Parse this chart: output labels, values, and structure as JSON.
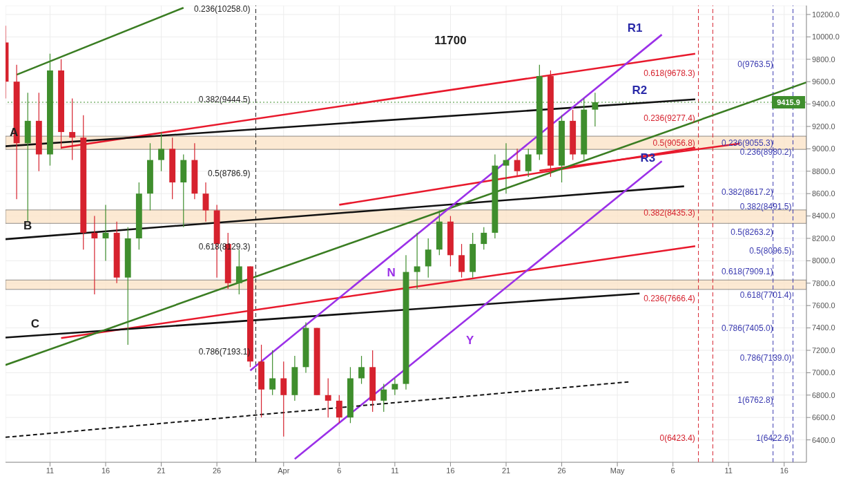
{
  "chart_data": {
    "type": "candlestick",
    "x": [
      "--03-07",
      "--03-08",
      "--03-09",
      "--03-10",
      "--03-11",
      "--03-12",
      "--03-13",
      "--03-14",
      "--03-15",
      "--03-16",
      "--03-17",
      "--03-18",
      "--03-19",
      "--03-20",
      "--03-21",
      "--03-22",
      "--03-23",
      "--03-24",
      "--03-25",
      "--03-26",
      "--03-27",
      "--03-28",
      "--03-29",
      "--03-30",
      "--03-31",
      "--04-01",
      "--04-02",
      "--04-03",
      "--04-04",
      "--04-05",
      "--04-06",
      "--04-07",
      "--04-08",
      "--04-09",
      "--04-10",
      "--04-11",
      "--04-12",
      "--04-13",
      "--04-14",
      "--04-15",
      "--04-16",
      "--04-17",
      "--04-18",
      "--04-19",
      "--04-20",
      "--04-21",
      "--04-22",
      "--04-23",
      "--04-24",
      "--04-25",
      "--04-26",
      "--04-27",
      "--04-28",
      "--04-29"
    ],
    "ohlc": [
      [
        9950,
        10100,
        9450,
        9600
      ],
      [
        9600,
        9750,
        8550,
        9050
      ],
      [
        9050,
        9500,
        8350,
        9250
      ],
      [
        9250,
        9500,
        8800,
        8950
      ],
      [
        8950,
        9850,
        8850,
        9700
      ],
      [
        9700,
        9800,
        9000,
        9150
      ],
      [
        9150,
        9450,
        8900,
        9100
      ],
      [
        9100,
        9300,
        8100,
        8250
      ],
      [
        8250,
        8400,
        7700,
        8200
      ],
      [
        8200,
        8500,
        8000,
        8250
      ],
      [
        8250,
        8350,
        7800,
        7850
      ],
      [
        7850,
        8300,
        7250,
        8200
      ],
      [
        8200,
        8700,
        8100,
        8600
      ],
      [
        8600,
        9050,
        8450,
        8900
      ],
      [
        8900,
        9150,
        8800,
        9000
      ],
      [
        9000,
        9100,
        8550,
        8700
      ],
      [
        8700,
        8950,
        8300,
        8900
      ],
      [
        8900,
        9050,
        8550,
        8600
      ],
      [
        8600,
        8700,
        8350,
        8450
      ],
      [
        8450,
        8500,
        7850,
        8150
      ],
      [
        8150,
        8250,
        7750,
        7800
      ],
      [
        7800,
        8100,
        7700,
        7950
      ],
      [
        7950,
        7950,
        7050,
        7100
      ],
      [
        7100,
        7250,
        6600,
        6850
      ],
      [
        6850,
        7200,
        6800,
        6950
      ],
      [
        6950,
        7100,
        6430,
        6800
      ],
      [
        6800,
        7150,
        6750,
        7050
      ],
      [
        7050,
        7450,
        7000,
        7400
      ],
      [
        7400,
        7400,
        6800,
        6800
      ],
      [
        6800,
        6950,
        6600,
        6750
      ],
      [
        6750,
        6800,
        6550,
        6600
      ],
      [
        6600,
        7050,
        6550,
        6950
      ],
      [
        6950,
        7150,
        6900,
        7050
      ],
      [
        7050,
        7200,
        6650,
        6750
      ],
      [
        6750,
        6900,
        6650,
        6850
      ],
      [
        6850,
        6950,
        6800,
        6900
      ],
      [
        6900,
        8050,
        6850,
        7900
      ],
      [
        7900,
        8250,
        7750,
        7950
      ],
      [
        7950,
        8200,
        7850,
        8100
      ],
      [
        8100,
        8450,
        8050,
        8350
      ],
      [
        8350,
        8400,
        7950,
        8050
      ],
      [
        8050,
        8150,
        7850,
        7900
      ],
      [
        7900,
        8250,
        7850,
        8150
      ],
      [
        8150,
        8300,
        8100,
        8250
      ],
      [
        8250,
        8950,
        8200,
        8850
      ],
      [
        8850,
        9050,
        8600,
        8900
      ],
      [
        8900,
        9000,
        8750,
        8800
      ],
      [
        8800,
        9000,
        8750,
        8950
      ],
      [
        8950,
        9750,
        8900,
        9650
      ],
      [
        9650,
        9700,
        8750,
        8850
      ],
      [
        8850,
        9300,
        8700,
        9250
      ],
      [
        9250,
        9350,
        8900,
        8950
      ],
      [
        8950,
        9450,
        8900,
        9350
      ],
      [
        9350,
        9500,
        9200,
        9415.9
      ]
    ],
    "colors": [
      "#d6222e",
      "#d6222e",
      "#3f8e2d",
      "#d6222e",
      "#3f8e2d",
      "#d6222e",
      "#d6222e",
      "#d6222e",
      "#d6222e",
      "#3f8e2d",
      "#d6222e",
      "#3f8e2d",
      "#3f8e2d",
      "#3f8e2d",
      "#3f8e2d",
      "#d6222e",
      "#3f8e2d",
      "#d6222e",
      "#d6222e",
      "#d6222e",
      "#d6222e",
      "#3f8e2d",
      "#d6222e",
      "#d6222e",
      "#3f8e2d",
      "#d6222e",
      "#3f8e2d",
      "#3f8e2d",
      "#d6222e",
      "#d6222e",
      "#d6222e",
      "#3f8e2d",
      "#3f8e2d",
      "#d6222e",
      "#3f8e2d",
      "#3f8e2d",
      "#3f8e2d",
      "#3f8e2d",
      "#3f8e2d",
      "#3f8e2d",
      "#d6222e",
      "#d6222e",
      "#3f8e2d",
      "#3f8e2d",
      "#3f8e2d",
      "#3f8e2d",
      "#d6222e",
      "#3f8e2d",
      "#3f8e2d",
      "#d6222e",
      "#3f8e2d",
      "#d6222e",
      "#3f8e2d",
      "#3f8e2d"
    ],
    "series": [
      {
        "type": "line",
        "color": "#e8192c",
        "x": [
          "--03-12",
          "--05-08"
        ],
        "values": [
          9010,
          9850
        ]
      },
      {
        "type": "line",
        "color": "#e8192c",
        "x": [
          "--04-06",
          "--05-08"
        ],
        "values": [
          8500,
          9010
        ]
      },
      {
        "type": "line",
        "color": "#e8192c",
        "x": [
          "--03-12",
          "--05-08"
        ],
        "values": [
          7310,
          8130
        ]
      },
      {
        "type": "line",
        "color": "#e8192c",
        "x": [
          "--04-24",
          "--05-12"
        ],
        "values": [
          8805,
          9047
        ]
      },
      {
        "type": "line",
        "color": "#111111",
        "x": [
          "--03-07",
          "--05-08"
        ],
        "values": [
          9023,
          9442
        ]
      },
      {
        "type": "line",
        "color": "#111111",
        "x": [
          "--03-07",
          "--05-07"
        ],
        "values": [
          8193,
          8665
        ]
      },
      {
        "type": "line",
        "color": "#111111",
        "x": [
          "--03-07",
          "--05-03"
        ],
        "values": [
          7314,
          7708
        ]
      },
      {
        "type": "line",
        "color": "#3a7d22",
        "x": [
          "--03-07",
          "--05-18"
        ],
        "values": [
          7069,
          9594
        ]
      },
      {
        "type": "line",
        "color": "#3a7d22",
        "x": [
          "--03-08",
          "--03-23"
        ],
        "values": [
          9662,
          10260
        ]
      },
      {
        "type": "line",
        "color": "#9b30e8",
        "x": [
          "--03-29",
          "--05-05"
        ],
        "values": [
          7020,
          10020
        ]
      },
      {
        "type": "line",
        "color": "#9b30e8",
        "x": [
          "--04-02",
          "--05-05"
        ],
        "values": [
          6230,
          8890
        ]
      },
      {
        "type": "line",
        "color": "#111111",
        "line_style": "dashed",
        "x": [
          "--03-07",
          "--05-02"
        ],
        "values": [
          6423,
          6918
        ]
      }
    ],
    "xlim": [
      "--03-07",
      "--05-18"
    ],
    "xticks": [
      {
        "value": "--03-11",
        "label": "11"
      },
      {
        "value": "--03-16",
        "label": "16"
      },
      {
        "value": "--03-21",
        "label": "21"
      },
      {
        "value": "--03-26",
        "label": "26"
      },
      {
        "value": "--04-01",
        "label": "Apr"
      },
      {
        "value": "--04-06",
        "label": "6"
      },
      {
        "value": "--04-11",
        "label": "11"
      },
      {
        "value": "--04-16",
        "label": "16"
      },
      {
        "value": "--04-21",
        "label": "21"
      },
      {
        "value": "--04-26",
        "label": "26"
      },
      {
        "value": "--05-01",
        "label": "May"
      },
      {
        "value": "--05-06",
        "label": "6"
      },
      {
        "value": "--05-11",
        "label": "11"
      },
      {
        "value": "--05-16",
        "label": "16"
      }
    ],
    "ylim": [
      6200,
      10280
    ],
    "yticks": [
      {
        "value": 6400,
        "label": "6400.0"
      },
      {
        "value": 6600,
        "label": "6600.0"
      },
      {
        "value": 6800,
        "label": "6800.0"
      },
      {
        "value": 7000,
        "label": "7000.0"
      },
      {
        "value": 7200,
        "label": "7200.0"
      },
      {
        "value": 7400,
        "label": "7400.0"
      },
      {
        "value": 7600,
        "label": "7600.0"
      },
      {
        "value": 7800,
        "label": "7800.0"
      },
      {
        "value": 8000,
        "label": "8000.0"
      },
      {
        "value": 8200,
        "label": "8200.0"
      },
      {
        "value": 8400,
        "label": "8400.0"
      },
      {
        "value": 8600,
        "label": "8600.0"
      },
      {
        "value": 8800,
        "label": "8800.0"
      },
      {
        "value": 9000,
        "label": "9000.0"
      },
      {
        "value": 9200,
        "label": "9200.0"
      },
      {
        "value": 9400,
        "label": "9400.0"
      },
      {
        "value": 9600,
        "label": "9600.0"
      },
      {
        "value": 9800,
        "label": "9800.0"
      },
      {
        "value": 10000,
        "label": "10000.0"
      },
      {
        "value": 10200,
        "label": "10200.0"
      }
    ],
    "grid": true,
    "ref_lines": [
      {
        "axis": "x",
        "value": "--03-29T12:00",
        "color": "#222222",
        "line_style": "dashed"
      },
      {
        "axis": "x",
        "value": "--05-08T07:00",
        "color": "#d6222e",
        "line_style": "dashed"
      },
      {
        "axis": "x",
        "value": "--05-09T14:00",
        "color": "#d6222e",
        "line_style": "dashed"
      },
      {
        "axis": "x",
        "value": "--05-15",
        "color": "#3a3ab0",
        "line_style": "dashed"
      },
      {
        "axis": "x",
        "value": "--05-16T19:00",
        "color": "#3a3ab0",
        "line_style": "dashed"
      },
      {
        "axis": "y",
        "value": 9415.9,
        "label": "9415.9",
        "color": "#3f8e2d",
        "line_style": "dotted"
      }
    ],
    "bands": [
      {
        "axis": "y",
        "from": 8995,
        "to": 9113,
        "color": "#fbe3c8"
      },
      {
        "axis": "y",
        "from": 8334,
        "to": 8454,
        "color": "#fbe3c8"
      },
      {
        "axis": "y",
        "from": 7744,
        "to": 7828,
        "color": "#fbe3c8"
      }
    ],
    "annotations": [
      "0.236(10258.0)",
      "0.382(9444.5)",
      "0.5(8786.9)",
      "0.618(8129.3)",
      "0.786(7193.1)",
      "0.618(9678.3)",
      "0.236(9277.4)",
      "0.5(9056.8)",
      "0.382(8435.3)",
      "0.236(7666.4)",
      "0(6423.4)",
      "0(9763.5)",
      "0.236(9055.3)",
      "0.382(8617.2)",
      "0.5(8263.2)",
      "0.618(7909.1)",
      "0.786(7405.0)",
      "1(6762.8)",
      "0.236(8980.2)",
      "0.382(8491.5)",
      "0.5(8096.5)",
      "0.618(7701.4)",
      "0.786(7139.0)",
      "1(6422.6)",
      "A",
      "B",
      "C",
      "N",
      "Y",
      "R1",
      "R2",
      "R3",
      "11700"
    ]
  }
}
